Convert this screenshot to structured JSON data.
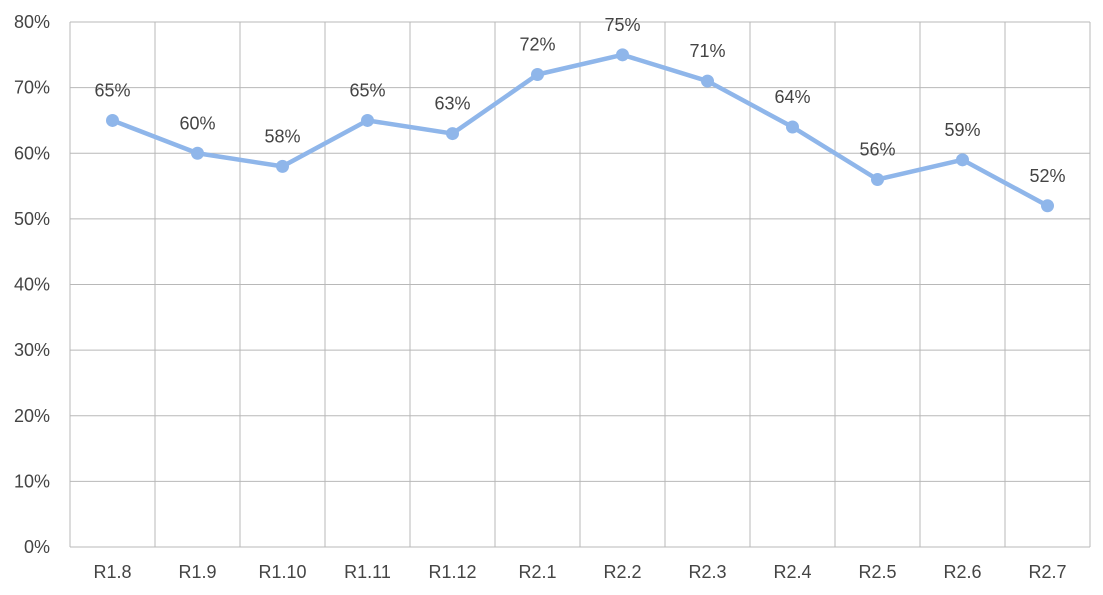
{
  "chart_data": {
    "type": "line",
    "categories": [
      "R1.8",
      "R1.9",
      "R1.10",
      "R1.11",
      "R1.12",
      "R2.1",
      "R2.2",
      "R2.3",
      "R2.4",
      "R2.5",
      "R2.6",
      "R2.7"
    ],
    "series": [
      {
        "values": [
          65,
          60,
          58,
          65,
          63,
          72,
          75,
          71,
          64,
          56,
          59,
          52
        ],
        "data_labels": [
          "65%",
          "60%",
          "58%",
          "65%",
          "63%",
          "72%",
          "75%",
          "71%",
          "64%",
          "56%",
          "59%",
          "52%"
        ],
        "color": "#8fb6ea"
      }
    ],
    "y_ticks": [
      "0%",
      "10%",
      "20%",
      "30%",
      "40%",
      "50%",
      "60%",
      "70%",
      "80%"
    ],
    "ylim": [
      0,
      80
    ],
    "y_step": 10,
    "grid": true,
    "legend": "none"
  }
}
